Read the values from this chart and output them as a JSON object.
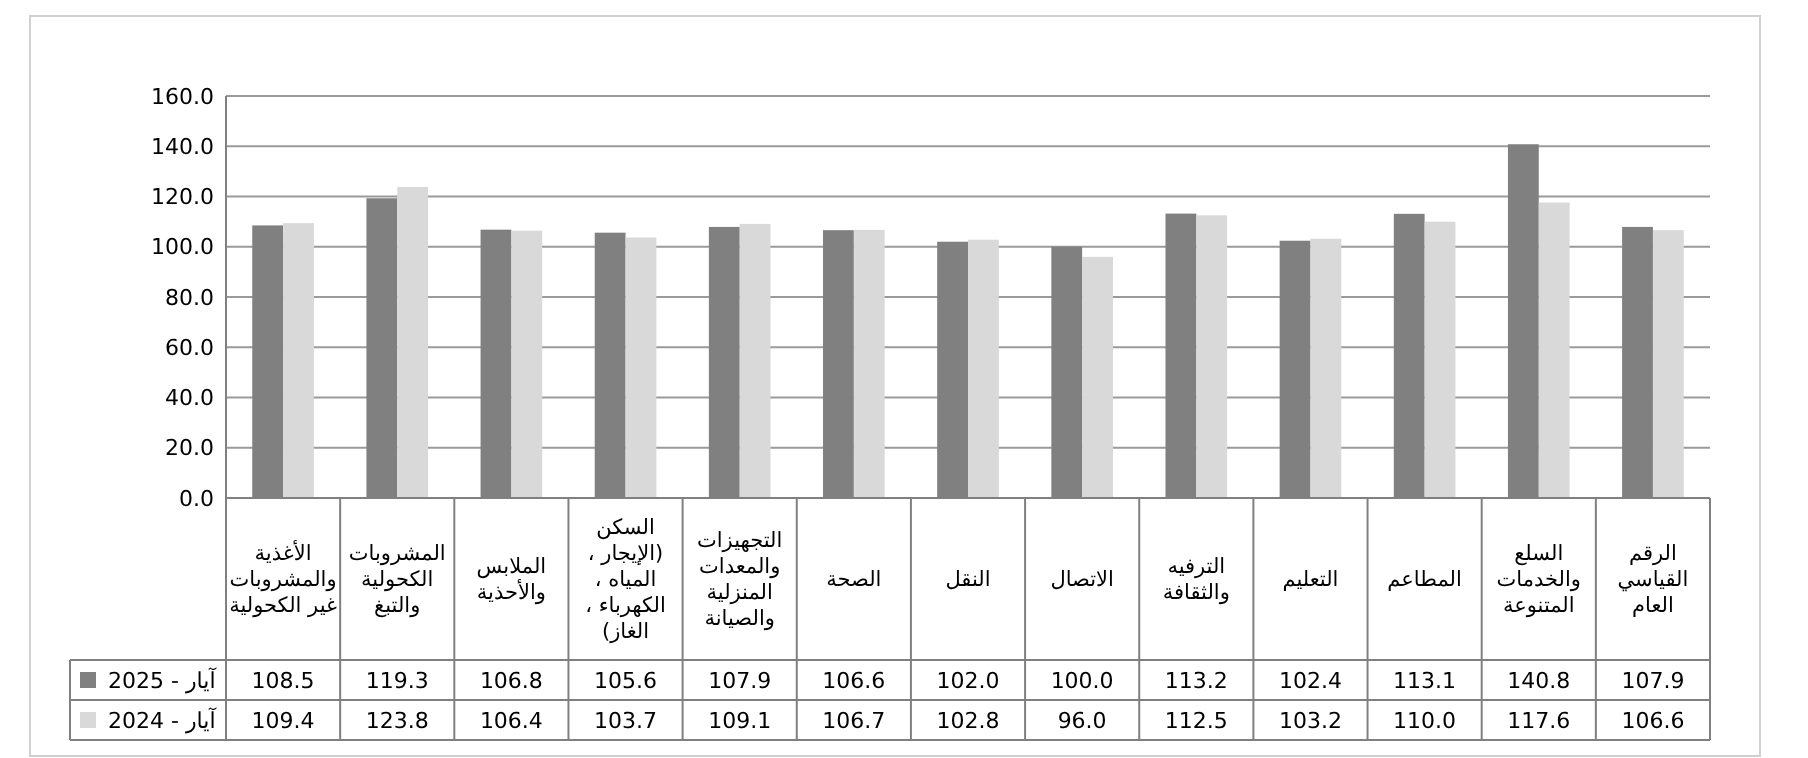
{
  "chart_data": {
    "type": "bar",
    "categories": [
      "الأغذية والمشروبات غير الكحولية",
      "المشروبات الكحولية والتبغ",
      "الملابس والأحذية",
      "السكن (الإيجار ، المياه ، الكهرباء ، الغاز)",
      "التجهيزات والمعدات المنزلية والصيانة",
      "الصحة",
      "النقل",
      "الاتصال",
      "الترفيه والثقافة",
      "التعليم",
      "المطاعم",
      "السلع والخدمات المتنوعة",
      "الرقم القياسي العام"
    ],
    "series": [
      {
        "name": "آيار - 2025",
        "color": "#808080",
        "values": [
          108.5,
          119.3,
          106.8,
          105.6,
          107.9,
          106.6,
          102.0,
          100.0,
          113.2,
          102.4,
          113.1,
          140.8,
          107.9
        ],
        "value_labels": [
          "108.5",
          "119.3",
          "106.8",
          "105.6",
          "107.9",
          "106.6",
          "102.0",
          "100.0",
          "113.2",
          "102.4",
          "113.1",
          "140.8",
          "107.9"
        ]
      },
      {
        "name": "آيار - 2024",
        "color": "#d9d9d9",
        "values": [
          109.4,
          123.8,
          106.4,
          103.7,
          109.1,
          106.7,
          102.8,
          96.0,
          112.5,
          103.2,
          110.0,
          117.6,
          106.6
        ],
        "value_labels": [
          "109.4",
          "123.8",
          "106.4",
          "103.7",
          "109.1",
          "106.7",
          "102.8",
          "96.0",
          "112.5",
          "103.2",
          "110.0",
          "117.6",
          "106.6"
        ]
      }
    ],
    "ylim": [
      0,
      160
    ],
    "yticks": [
      {
        "value": 0,
        "label": "0.0"
      },
      {
        "value": 20,
        "label": "20.0"
      },
      {
        "value": 40,
        "label": "40.0"
      },
      {
        "value": 60,
        "label": "60.0"
      },
      {
        "value": 80,
        "label": "80.0"
      },
      {
        "value": 100,
        "label": "100.0"
      },
      {
        "value": 120,
        "label": "120.0"
      },
      {
        "value": 140,
        "label": "140.0"
      },
      {
        "value": 160,
        "label": "160.0"
      }
    ],
    "grid": "y",
    "legend": "left"
  }
}
